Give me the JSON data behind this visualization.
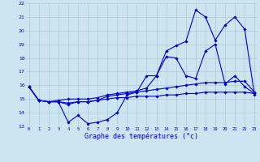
{
  "title": "Graphe des températures (°c)",
  "background_color": "#cce5f0",
  "grid_color": "#aaccdd",
  "line_color": "#0000cc",
  "x_hours": [
    0,
    1,
    2,
    3,
    4,
    5,
    6,
    7,
    8,
    9,
    10,
    11,
    12,
    13,
    14,
    15,
    16,
    17,
    18,
    19,
    20,
    21,
    22,
    23
  ],
  "curve1": [
    15.9,
    14.9,
    14.8,
    14.8,
    13.3,
    13.8,
    13.2,
    13.3,
    13.5,
    14.0,
    15.3,
    15.5,
    16.7,
    16.7,
    18.1,
    18.0,
    16.7,
    16.5,
    18.5,
    19.0,
    16.1,
    16.7,
    15.9,
    15.4
  ],
  "curve2": [
    15.9,
    14.9,
    14.8,
    14.9,
    15.0,
    15.0,
    15.0,
    15.1,
    15.3,
    15.4,
    15.5,
    15.6,
    15.8,
    16.7,
    18.5,
    18.9,
    19.2,
    21.5,
    21.0,
    19.3,
    20.4,
    21.0,
    20.1,
    15.3
  ],
  "curve3": [
    15.9,
    14.9,
    14.8,
    14.8,
    14.6,
    14.8,
    14.8,
    14.9,
    15.2,
    15.3,
    15.4,
    15.5,
    15.6,
    15.7,
    15.8,
    15.9,
    16.0,
    16.1,
    16.2,
    16.2,
    16.2,
    16.3,
    16.3,
    15.5
  ],
  "curve4": [
    15.9,
    14.9,
    14.8,
    14.8,
    14.7,
    14.8,
    14.8,
    14.9,
    15.0,
    15.1,
    15.1,
    15.2,
    15.2,
    15.2,
    15.3,
    15.3,
    15.4,
    15.4,
    15.5,
    15.5,
    15.5,
    15.5,
    15.5,
    15.4
  ],
  "ylim": [
    13,
    22
  ],
  "yticks": [
    13,
    14,
    15,
    16,
    17,
    18,
    19,
    20,
    21,
    22
  ],
  "xticks": [
    0,
    1,
    2,
    3,
    4,
    5,
    6,
    7,
    8,
    9,
    10,
    11,
    12,
    13,
    14,
    15,
    16,
    17,
    18,
    19,
    20,
    21,
    22,
    23
  ]
}
